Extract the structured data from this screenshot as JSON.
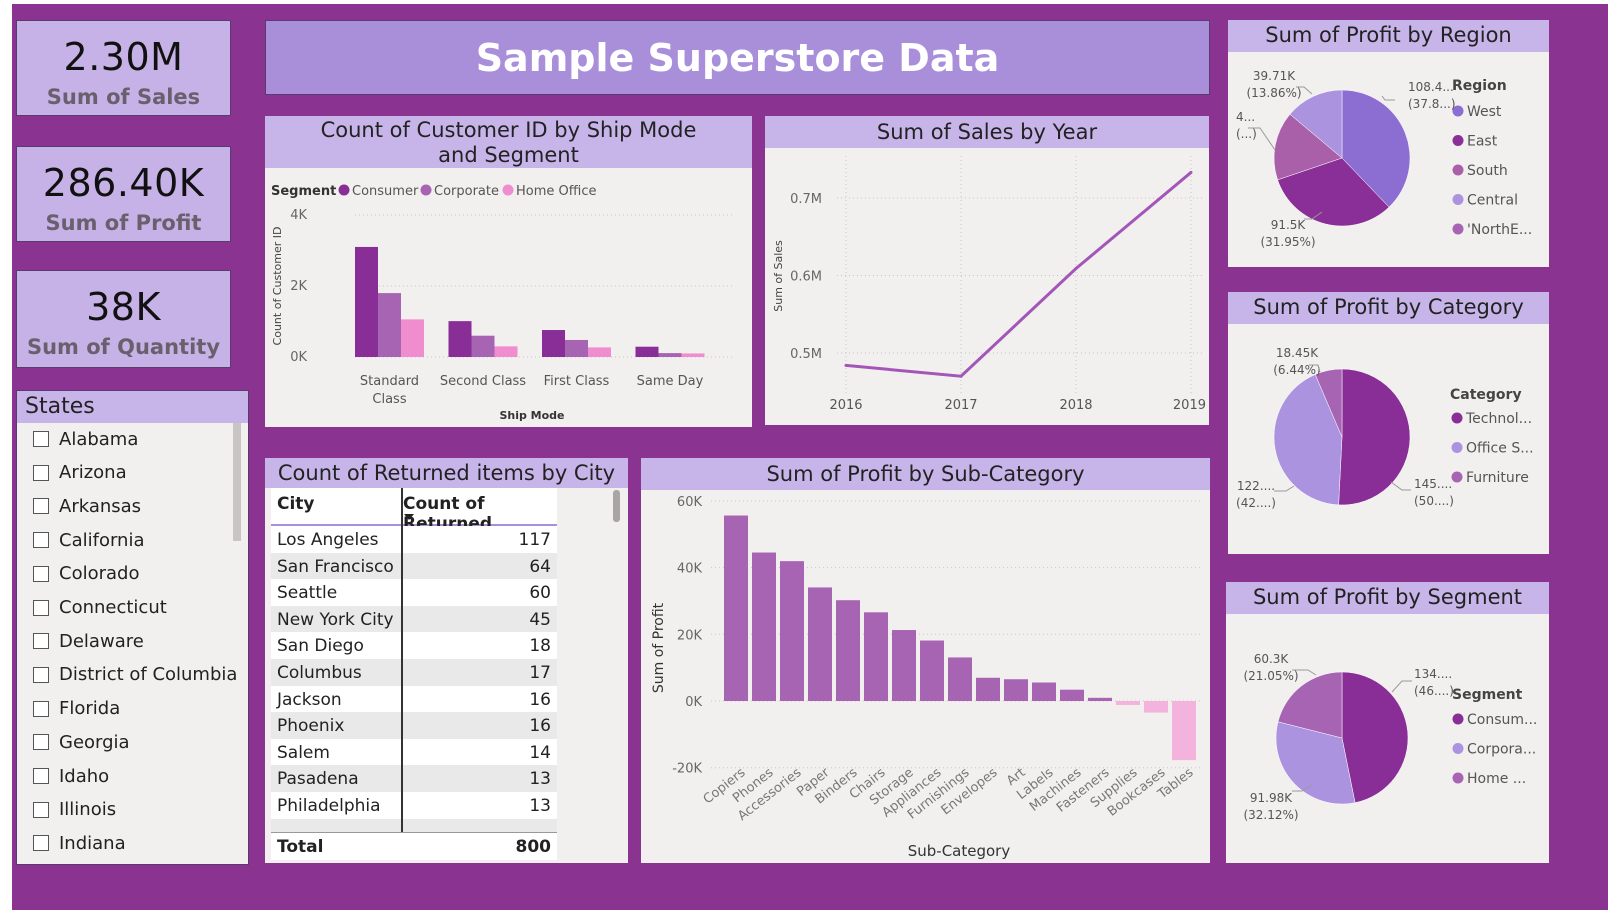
{
  "kpis": [
    {
      "value": "2.30M",
      "label": "Sum of Sales"
    },
    {
      "value": "286.40K",
      "label": "Sum of Profit"
    },
    {
      "value": "38K",
      "label": "Sum of Quantity"
    }
  ],
  "banner": {
    "title": "Sample Superstore Data"
  },
  "states_slicer": {
    "title": "States",
    "items": [
      "Alabama",
      "Arizona",
      "Arkansas",
      "California",
      "Colorado",
      "Connecticut",
      "Delaware",
      "District of Columbia",
      "Florida",
      "Georgia",
      "Idaho",
      "Illinois",
      "Indiana"
    ]
  },
  "returns_table": {
    "title": "Count of Returned items by City",
    "headers": [
      "City",
      "Count of Returned"
    ],
    "rows": [
      [
        "Los Angeles",
        "117"
      ],
      [
        "San Francisco",
        "64"
      ],
      [
        "Seattle",
        "60"
      ],
      [
        "New York City",
        "45"
      ],
      [
        "San Diego",
        "18"
      ],
      [
        "Columbus",
        "17"
      ],
      [
        "Jackson",
        "16"
      ],
      [
        "Phoenix",
        "16"
      ],
      [
        "Salem",
        "14"
      ],
      [
        "Pasadena",
        "13"
      ],
      [
        "Philadelphia",
        "13"
      ]
    ],
    "total_label": "Total",
    "total_value": "800"
  },
  "colors": {
    "purple_dark": "#882e96",
    "purple_mid": "#a764b3",
    "pink": "#f08dcf",
    "lavender": "#a99ae0",
    "line": "#a356b8"
  },
  "chart_data": [
    {
      "id": "shipmode",
      "type": "bar",
      "title": "Count of Customer ID by Ship Mode and Segment",
      "legend_title": "Segment",
      "categories": [
        "Standard Class",
        "Second Class",
        "First Class",
        "Same Day"
      ],
      "series": [
        {
          "name": "Consumer",
          "values": [
            3100,
            1010,
            760,
            290
          ],
          "color": "#882e96"
        },
        {
          "name": "Corporate",
          "values": [
            1800,
            600,
            480,
            110
          ],
          "color": "#a764b3"
        },
        {
          "name": "Home Office",
          "values": [
            1060,
            300,
            270,
            100
          ],
          "color": "#f08dcf"
        }
      ],
      "xlabel": "Ship Mode",
      "ylabel": "Count of Customer ID",
      "yticks": [
        "0K",
        "2K",
        "4K"
      ],
      "ylim": [
        0,
        4000
      ]
    },
    {
      "id": "salesyear",
      "type": "line",
      "title": "Sum of Sales by Year",
      "x": [
        "2016",
        "2017",
        "2018",
        "2019"
      ],
      "values": [
        484000,
        470000,
        609000,
        733000
      ],
      "ylabel": "Sum of Sales",
      "yticks": [
        "0.5M",
        "0.6M",
        "0.7M"
      ],
      "ylim": [
        0.455,
        0.75
      ]
    },
    {
      "id": "subcat",
      "type": "bar",
      "title": "Sum of Profit by Sub-Category",
      "categories": [
        "Copiers",
        "Phones",
        "Accessories",
        "Paper",
        "Binders",
        "Chairs",
        "Storage",
        "Appliances",
        "Furnishings",
        "Envelopes",
        "Art",
        "Labels",
        "Machines",
        "Fasteners",
        "Supplies",
        "Bookcases",
        "Tables"
      ],
      "values": [
        55618,
        44516,
        41937,
        34054,
        30222,
        26590,
        21279,
        18138,
        13059,
        6964,
        6528,
        5546,
        3385,
        950,
        -1189,
        -3473,
        -17725
      ],
      "xlabel": "Sub-Category",
      "ylabel": "Sum of Profit",
      "yticks": [
        "-20K",
        "0K",
        "20K",
        "40K",
        "60K"
      ],
      "ylim": [
        -20000,
        60000
      ]
    },
    {
      "id": "region",
      "type": "pie",
      "title": "Sum of Profit by Region",
      "legend_title": "Region",
      "labels": [
        "West",
        "East",
        "South",
        "Central",
        "'NorthE..."
      ],
      "values": [
        108.4,
        91.5,
        46.8,
        39.71,
        0
      ],
      "colors": [
        "#8c6dd1",
        "#8a2f97",
        "#a960a9",
        "#ab93e0",
        "#a764b3"
      ],
      "data_labels": [
        [
          "108.4...",
          "(37.8...)"
        ],
        [
          "91.5K",
          "(31.95%)"
        ],
        [
          "4...",
          "(...)"
        ],
        [
          "39.71K",
          "(13.86%)"
        ]
      ]
    },
    {
      "id": "category",
      "type": "pie",
      "title": "Sum of Profit by Category",
      "legend_title": "Category",
      "labels": [
        "Technol...",
        "Office S...",
        "Furniture"
      ],
      "values": [
        145.5,
        122.5,
        18.45
      ],
      "colors": [
        "#882e96",
        "#ab93e0",
        "#a764b3"
      ],
      "data_labels": [
        [
          "145....",
          "(50....)"
        ],
        [
          "122....",
          "(42....)"
        ],
        [
          "18.45K",
          "(6.44%)"
        ]
      ]
    },
    {
      "id": "segment",
      "type": "pie",
      "title": "Sum of Profit by Segment",
      "legend_title": "Segment",
      "labels": [
        "Consum...",
        "Corpora...",
        "Home ..."
      ],
      "values": [
        134.1,
        91.98,
        60.3
      ],
      "colors": [
        "#882e96",
        "#ab93e0",
        "#a764b3"
      ],
      "data_labels": [
        [
          "134....",
          "(46....)"
        ],
        [
          "91.98K",
          "(32.12%)"
        ],
        [
          "60.3K",
          "(21.05%)"
        ]
      ]
    }
  ]
}
